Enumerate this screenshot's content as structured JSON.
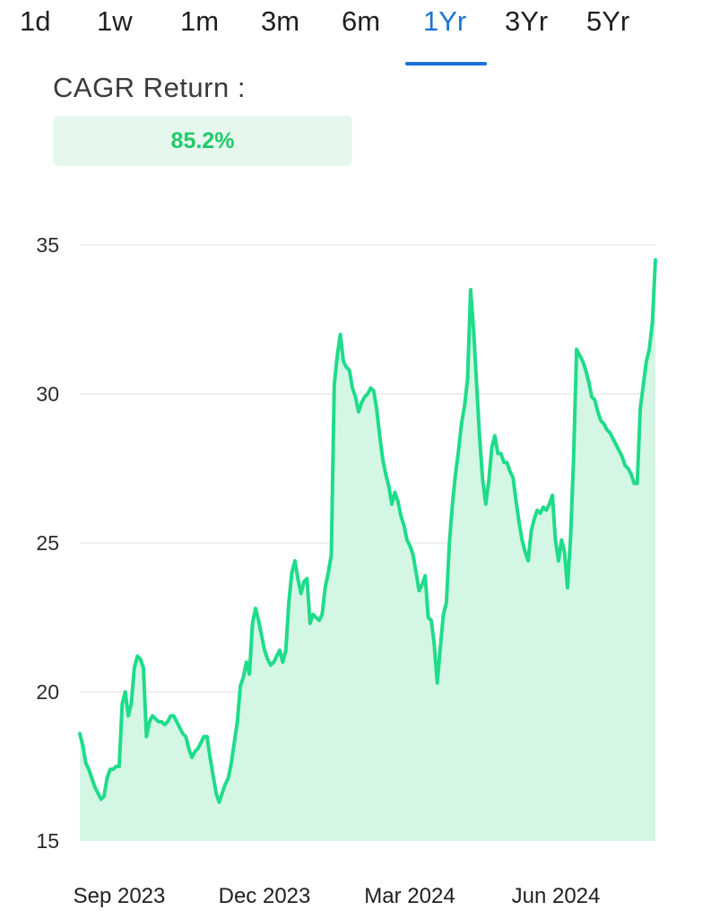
{
  "tabs": [
    {
      "label": "1d",
      "active": false
    },
    {
      "label": "1w",
      "active": false
    },
    {
      "label": "1m",
      "active": false
    },
    {
      "label": "3m",
      "active": false
    },
    {
      "label": "6m",
      "active": false
    },
    {
      "label": "1Yr",
      "active": true
    },
    {
      "label": "3Yr",
      "active": false
    },
    {
      "label": "5Yr",
      "active": false
    }
  ],
  "cagr": {
    "label": "CAGR Return :",
    "value": "85.2%"
  },
  "colors": {
    "accent": "#1a73d9",
    "line": "#1fdc8a",
    "fill": "#d3f7e4",
    "positive": "#22c96a"
  },
  "chart_data": {
    "type": "area",
    "title": "",
    "xlabel": "",
    "ylabel": "",
    "ylim": [
      15,
      35
    ],
    "yticks": [
      15,
      20,
      25,
      30,
      35
    ],
    "xticks": [
      "Sep 2023",
      "Dec 2023",
      "Mar 2024",
      "Jun 2024"
    ],
    "grid": true,
    "series": [
      {
        "values": [
          18.6,
          18.2,
          17.6,
          17.4,
          17.1,
          16.8,
          16.6,
          16.4,
          16.5,
          17.1,
          17.4,
          17.4,
          17.5,
          17.5,
          19.6,
          20.0,
          19.2,
          19.6,
          20.8,
          21.2,
          21.1,
          20.8,
          18.5,
          19.0,
          19.2,
          19.1,
          19.0,
          19.0,
          18.9,
          19.0,
          19.2,
          19.2,
          19.0,
          18.8,
          18.6,
          18.5,
          18.1,
          17.8,
          18.0,
          18.1,
          18.3,
          18.5,
          18.5,
          17.8,
          17.2,
          16.6,
          16.3,
          16.6,
          16.9,
          17.1,
          17.6,
          18.3,
          19.0,
          20.2,
          20.5,
          21.0,
          20.6,
          22.3,
          22.8,
          22.4,
          21.9,
          21.4,
          21.1,
          20.9,
          21.0,
          21.2,
          21.4,
          21.0,
          21.4,
          23.0,
          24.0,
          24.4,
          23.8,
          23.3,
          23.7,
          23.8,
          22.3,
          22.6,
          22.5,
          22.4,
          22.6,
          23.5,
          24.0,
          24.6,
          30.3,
          31.3,
          32.0,
          31.1,
          30.9,
          30.8,
          30.2,
          29.9,
          29.4,
          29.7,
          29.9,
          30.0,
          30.2,
          30.1,
          29.5,
          28.6,
          27.8,
          27.3,
          26.9,
          26.3,
          26.7,
          26.4,
          25.9,
          25.6,
          25.1,
          24.9,
          24.6,
          24.0,
          23.4,
          23.6,
          23.9,
          22.5,
          22.4,
          21.6,
          20.3,
          21.5,
          22.6,
          23.0,
          25.0,
          26.3,
          27.3,
          28.1,
          29.0,
          29.6,
          30.5,
          33.5,
          32.1,
          30.3,
          28.5,
          27.1,
          26.3,
          27.1,
          28.2,
          28.6,
          28.0,
          28.0,
          27.7,
          27.7,
          27.4,
          27.2,
          26.4,
          25.7,
          25.1,
          24.7,
          24.4,
          25.4,
          25.8,
          26.1,
          26.0,
          26.2,
          26.1,
          26.3,
          26.6,
          25.1,
          24.4,
          25.1,
          24.7,
          23.5,
          25.2,
          27.9,
          31.5,
          31.3,
          31.1,
          30.8,
          30.4,
          29.9,
          29.8,
          29.4,
          29.1,
          29.0,
          28.8,
          28.7,
          28.5,
          28.3,
          28.1,
          27.9,
          27.6,
          27.5,
          27.3,
          27.0,
          27.0,
          29.5,
          30.3,
          31.1,
          31.5,
          32.4,
          34.5
        ]
      }
    ]
  }
}
